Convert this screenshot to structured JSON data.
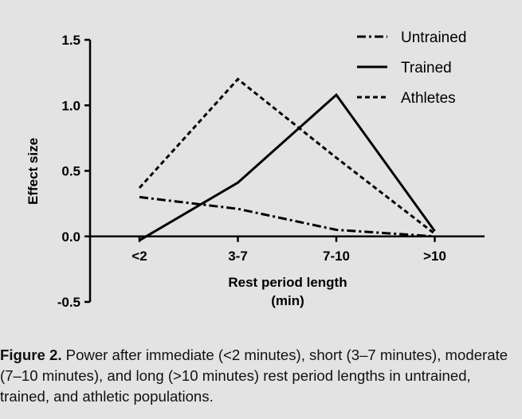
{
  "chart_data": {
    "type": "line",
    "title": "",
    "xlabel": "Rest period length",
    "xlabel_unit": "(min)",
    "ylabel": "Effect size",
    "categories": [
      "<2",
      "3-7",
      "7-10",
      ">10"
    ],
    "ylim": [
      -0.5,
      1.5
    ],
    "yticks": [
      -0.5,
      0.0,
      0.5,
      1.0,
      1.5
    ],
    "ytick_labels": [
      "-0.5",
      "0.0",
      "0.5",
      "1.0",
      "1.5"
    ],
    "grid": false,
    "legend_position": "top-right",
    "series": [
      {
        "name": "Untrained",
        "style": "dash-dot",
        "values": [
          0.3,
          0.21,
          0.05,
          0.0
        ]
      },
      {
        "name": "Trained",
        "style": "solid",
        "values": [
          -0.03,
          0.41,
          1.08,
          0.04
        ]
      },
      {
        "name": "Athletes",
        "style": "dashed",
        "values": [
          0.37,
          1.2,
          0.6,
          0.02
        ]
      }
    ]
  },
  "caption": {
    "label": "Figure 2.",
    "text": "Power after immediate (<2 minutes), short (3–7 minutes), moderate (7–10 minutes), and long (>10 minutes) rest period lengths in untrained, trained, and athletic populations."
  },
  "colors": {
    "background": "#e3e3e3",
    "ink": "#000000"
  }
}
